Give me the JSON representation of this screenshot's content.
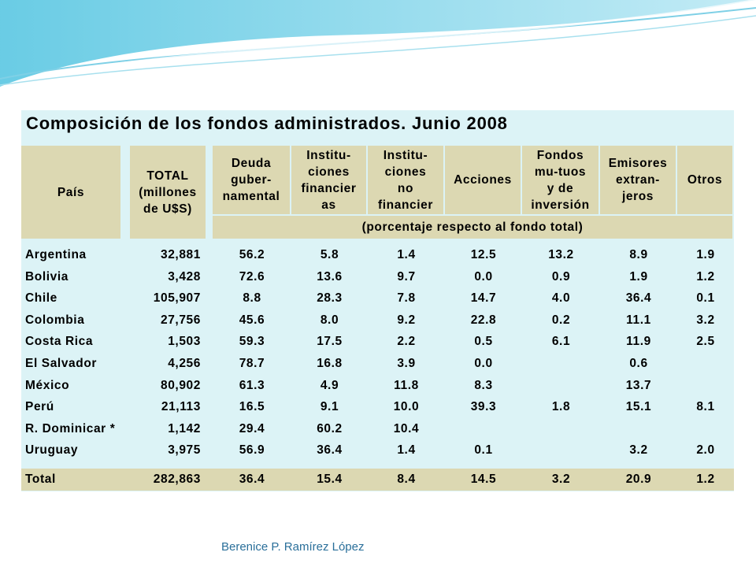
{
  "table": {
    "title": "Composición de los fondos administrados. Junio 2008",
    "headers": [
      [
        "País"
      ],
      [
        "TOTAL",
        "(millones",
        "de U$S)"
      ],
      [
        "Deuda",
        "guber-",
        "namental"
      ],
      [
        "Institu-",
        "ciones",
        "financier",
        "as"
      ],
      [
        "Institu-",
        "ciones",
        "no",
        "financier"
      ],
      [
        "Acciones"
      ],
      [
        "Fondos",
        "mu-tuos",
        "y de",
        "inversión"
      ],
      [
        "Emisores",
        "extran-",
        "jeros"
      ],
      [
        "Otros"
      ]
    ],
    "note": "(porcentaje respecto al fondo total)",
    "rows": [
      [
        "Argentina",
        "32,881",
        "56.2",
        "5.8",
        "1.4",
        "12.5",
        "13.2",
        "8.9",
        "1.9"
      ],
      [
        "Bolivia",
        "3,428",
        "72.6",
        "13.6",
        "9.7",
        "0.0",
        "0.9",
        "1.9",
        "1.2"
      ],
      [
        "Chile",
        "105,907",
        "8.8",
        "28.3",
        "7.8",
        "14.7",
        "4.0",
        "36.4",
        "0.1"
      ],
      [
        "Colombia",
        "27,756",
        "45.6",
        "8.0",
        "9.2",
        "22.8",
        "0.2",
        "11.1",
        "3.2"
      ],
      [
        "Costa Rica",
        "1,503",
        "59.3",
        "17.5",
        "2.2",
        "0.5",
        "6.1",
        "11.9",
        "2.5"
      ],
      [
        "El Salvador",
        "4,256",
        "78.7",
        "16.8",
        "3.9",
        "0.0",
        null,
        "0.6",
        null
      ],
      [
        "México",
        "80,902",
        "61.3",
        "4.9",
        "11.8",
        "8.3",
        null,
        "13.7",
        null
      ],
      [
        "Perú",
        "21,113",
        "16.5",
        "9.1",
        "10.0",
        "39.3",
        "1.8",
        "15.1",
        "8.1"
      ],
      [
        "R. Dominicar *",
        "1,142",
        "29.4",
        "60.2",
        "10.4",
        null,
        null,
        null,
        null
      ],
      [
        "Uruguay",
        "3,975",
        "56.9",
        "36.4",
        "1.4",
        "0.1",
        null,
        "3.2",
        "2.0"
      ]
    ],
    "total": [
      "Total",
      "282,863",
      "36.4",
      "15.4",
      "8.4",
      "14.5",
      "3.2",
      "20.9",
      "1.2"
    ]
  },
  "footer": "Berenice P. Ramírez López"
}
